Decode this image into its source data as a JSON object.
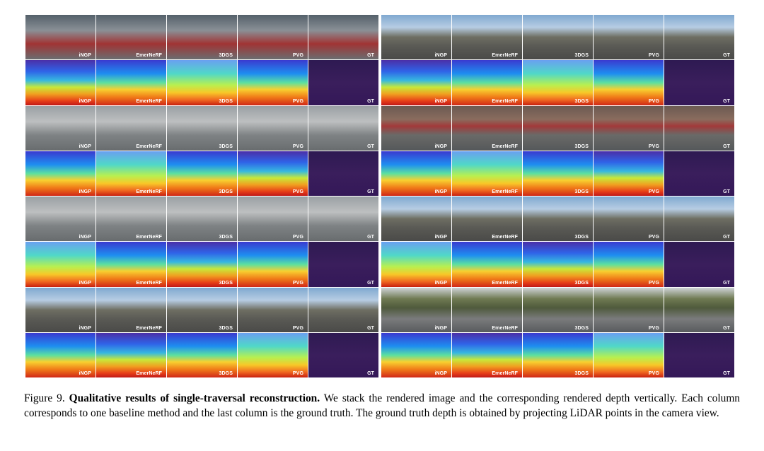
{
  "figure": {
    "method_labels": [
      "iNGP",
      "EmerNeRF",
      "3DGS",
      "PVG",
      "GT"
    ]
  },
  "caption": {
    "number": "Figure 9.",
    "title": "Qualitative results of single-traversal reconstruction.",
    "body": "We stack the rendered image and the corresponding rendered depth vertically. Each column corresponds to one baseline method and the last column is the ground truth. The ground truth depth is obtained by projecting LiDAR points in the camera view."
  }
}
